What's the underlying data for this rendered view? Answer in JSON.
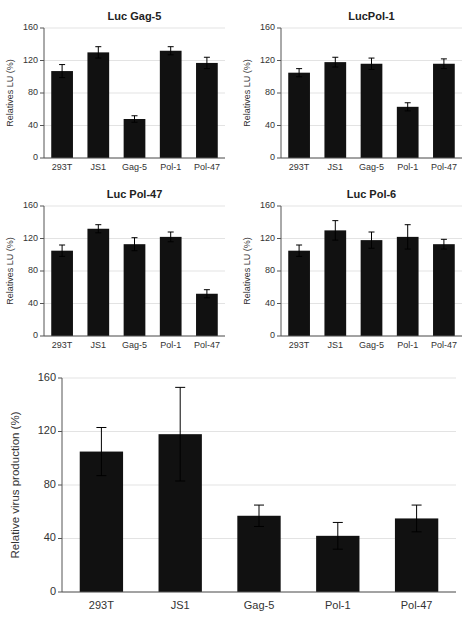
{
  "chart_data": [
    {
      "type": "bar",
      "title": "Luc Gag-5",
      "categories": [
        "293T",
        "JS1",
        "Gag-5",
        "Pol-1",
        "Pol-47"
      ],
      "values": [
        107,
        130,
        48,
        132,
        117
      ],
      "errors": [
        8,
        7,
        4,
        5,
        7
      ],
      "ylabel": "Relatives LU (%)",
      "ylim": [
        0,
        160
      ],
      "yticks": [
        0,
        40,
        80,
        120,
        160
      ],
      "color": "#111111"
    },
    {
      "type": "bar",
      "title": "LucPol-1",
      "categories": [
        "293T",
        "JS1",
        "Gag-5",
        "Pol-1",
        "Pol-47"
      ],
      "values": [
        105,
        118,
        116,
        63,
        116
      ],
      "errors": [
        5,
        6,
        7,
        5,
        6
      ],
      "ylabel": "Relatives LU (%)",
      "ylim": [
        0,
        160
      ],
      "yticks": [
        0,
        40,
        80,
        120,
        160
      ],
      "color": "#111111"
    },
    {
      "type": "bar",
      "title": "Luc Pol-47",
      "categories": [
        "293T",
        "JS1",
        "Gag-5",
        "Pol-1",
        "Pol-47"
      ],
      "values": [
        105,
        132,
        113,
        122,
        52
      ],
      "errors": [
        7,
        5,
        8,
        6,
        5
      ],
      "ylabel": "Relatives LU (%)",
      "ylim": [
        0,
        160
      ],
      "yticks": [
        0,
        40,
        80,
        120,
        160
      ],
      "color": "#111111"
    },
    {
      "type": "bar",
      "title": "Luc Pol-6",
      "categories": [
        "293T",
        "JS1",
        "Gag-5",
        "Pol-1",
        "Pol-47"
      ],
      "values": [
        105,
        130,
        118,
        122,
        113
      ],
      "errors": [
        7,
        12,
        10,
        15,
        6
      ],
      "ylabel": "Relatives LU (%)",
      "ylim": [
        0,
        160
      ],
      "yticks": [
        0,
        40,
        80,
        120,
        160
      ],
      "color": "#111111"
    },
    {
      "type": "bar",
      "categories": [
        "293T",
        "JS1",
        "Gag-5",
        "Pol-1",
        "Pol-47"
      ],
      "values": [
        105,
        118,
        57,
        42,
        55
      ],
      "errors": [
        18,
        35,
        8,
        10,
        10
      ],
      "ylabel": "Relative virus production (%)",
      "ylim": [
        0,
        160
      ],
      "yticks": [
        0,
        40,
        80,
        120,
        160
      ],
      "color": "#111111"
    }
  ]
}
